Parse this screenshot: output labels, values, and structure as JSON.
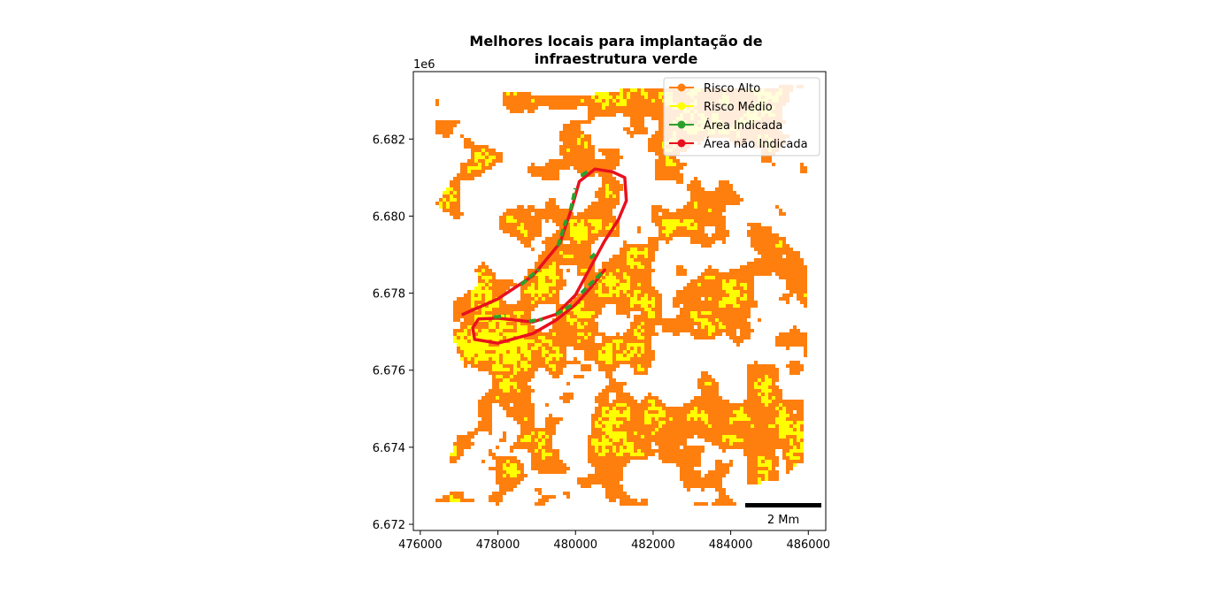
{
  "chart_data": {
    "type": "map",
    "title_line1": "Melhores locais para implantação de",
    "title_line2": "infraestrutura verde",
    "y_offset_label": "1e6",
    "xlim": [
      475820,
      486450
    ],
    "ylim": [
      6.67184,
      6.68375
    ],
    "x_ticks": [
      {
        "value": 476000,
        "label": "476000"
      },
      {
        "value": 478000,
        "label": "478000"
      },
      {
        "value": 480000,
        "label": "480000"
      },
      {
        "value": 482000,
        "label": "482000"
      },
      {
        "value": 484000,
        "label": "484000"
      },
      {
        "value": 486000,
        "label": "486000"
      }
    ],
    "y_ticks": [
      {
        "value": 6.672,
        "label": "6.672"
      },
      {
        "value": 6.674,
        "label": "6.674"
      },
      {
        "value": 6.676,
        "label": "6.676"
      },
      {
        "value": 6.678,
        "label": "6.678"
      },
      {
        "value": 6.68,
        "label": "6.680"
      },
      {
        "value": 6.682,
        "label": "6.682"
      }
    ],
    "legend": {
      "placement": "top-right",
      "entries": [
        {
          "label": "Risco Alto",
          "color": "#ff7f0e"
        },
        {
          "label": "Risco Médio",
          "color": "#ffff00"
        },
        {
          "label": "Área Indicada",
          "color": "#2ca02c"
        },
        {
          "label": "Área não Indicada",
          "color": "#e8101e"
        }
      ]
    },
    "scalebar_label": "2 Mm",
    "series": [
      {
        "name": "Área não Indicada",
        "color": "#e8101e",
        "type": "line",
        "points": [
          [
            477100,
            6.67745
          ],
          [
            478000,
            6.67785
          ],
          [
            478900,
            6.67845
          ],
          [
            479600,
            6.6793
          ],
          [
            479900,
            6.6802
          ],
          [
            480100,
            6.6809
          ],
          [
            480500,
            6.68122
          ],
          [
            480950,
            6.68115
          ],
          [
            481270,
            6.681
          ],
          [
            481310,
            6.6804
          ],
          [
            481100,
            6.6799
          ],
          [
            480750,
            6.67935
          ],
          [
            480400,
            6.6787
          ],
          [
            480000,
            6.67795
          ],
          [
            479500,
            6.67745
          ],
          [
            478900,
            6.67725
          ],
          [
            478000,
            6.67735
          ],
          [
            477500,
            6.67733
          ],
          [
            477350,
            6.6771
          ],
          [
            477400,
            6.6768
          ],
          [
            478000,
            6.6767
          ],
          [
            478900,
            6.67695
          ],
          [
            479500,
            6.6773
          ],
          [
            480000,
            6.6777
          ],
          [
            480400,
            6.67815
          ],
          [
            480750,
            6.6786
          ]
        ]
      },
      {
        "name": "Área Indicada",
        "color": "#2ca02c",
        "type": "dashed-segments",
        "segments": [
          [
            [
              478600,
              6.67822
            ],
            [
              479050,
              6.67862
            ]
          ],
          [
            [
              479550,
              6.67922
            ],
            [
              479760,
              6.6799
            ]
          ],
          [
            [
              479870,
              6.68015
            ],
            [
              480000,
              6.68072
            ]
          ],
          [
            [
              480150,
              6.68105
            ],
            [
              480300,
              6.68115
            ]
          ],
          [
            [
              480380,
              6.6789
            ],
            [
              480500,
              6.67902
            ]
          ],
          [
            [
              477900,
              6.67738
            ],
            [
              478200,
              6.67741
            ]
          ],
          [
            [
              478800,
              6.67727
            ],
            [
              479150,
              6.67732
            ]
          ],
          [
            [
              479500,
              6.67745
            ],
            [
              479920,
              6.6777
            ]
          ],
          [
            [
              480150,
              6.678
            ],
            [
              480700,
              6.67855
            ]
          ]
        ]
      }
    ],
    "raster_layers": [
      {
        "name": "Risco Alto",
        "color": "#ff7f0e"
      },
      {
        "name": "Risco Médio",
        "color": "#ffff00"
      }
    ]
  }
}
